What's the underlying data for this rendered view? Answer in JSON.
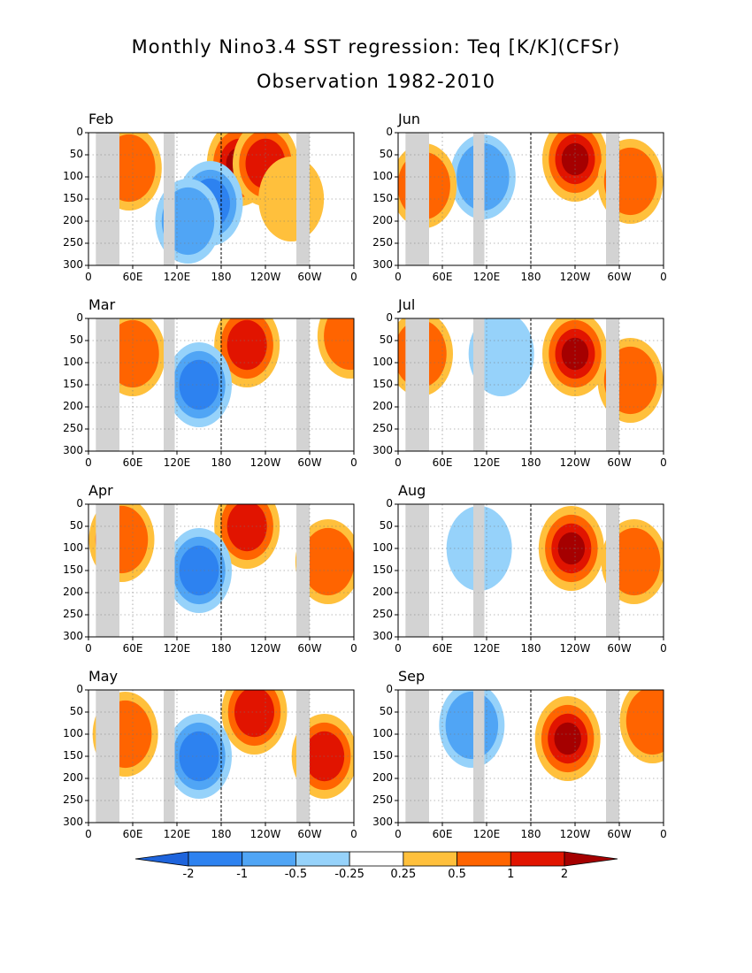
{
  "figure": {
    "title_line1": "Monthly Nino3.4 SST regression: Teq [K/K](CFSr)",
    "title_line2": "Observation 1982-2010"
  },
  "colors": {
    "levels": [
      "#1e64dc",
      "#2d82f0",
      "#50a5f5",
      "#96d2fa",
      "#ffffff",
      "#ffc03c",
      "#ff6400",
      "#e11400",
      "#a50000"
    ],
    "land_mask": "#d3d3d3"
  },
  "colorbar": {
    "labels": [
      "-2",
      "-1",
      "-0.5",
      "-0.25",
      "0.25",
      "0.5",
      "1",
      "2"
    ]
  },
  "chart_data": {
    "type": "heatmap",
    "x_ticks": [
      "0",
      "60E",
      "120E",
      "180",
      "120W",
      "60W",
      "0"
    ],
    "y_ticks": [
      "0",
      "50",
      "100",
      "150",
      "200",
      "250",
      "300"
    ],
    "xlim": [
      0,
      360
    ],
    "ylim": [
      300,
      0
    ],
    "contour_levels": [
      -2,
      -1,
      -0.5,
      -0.25,
      0.25,
      0.5,
      1,
      2
    ],
    "land_mask_lon": [
      [
        10,
        42
      ],
      [
        102,
        117
      ],
      [
        282,
        300
      ]
    ],
    "panels": [
      {
        "month": "Feb",
        "features": [
          {
            "lon": 205,
            "depth": 70,
            "value": 2.0
          },
          {
            "lon": 240,
            "depth": 70,
            "value": 1.5
          },
          {
            "lon": 165,
            "depth": 160,
            "value": -1.0
          },
          {
            "lon": 135,
            "depth": 200,
            "value": -0.5
          },
          {
            "lon": 55,
            "depth": 80,
            "value": 0.7
          },
          {
            "lon": 275,
            "depth": 150,
            "value": 0.4
          }
        ]
      },
      {
        "month": "Mar",
        "features": [
          {
            "lon": 215,
            "depth": 60,
            "value": 1.5
          },
          {
            "lon": 150,
            "depth": 150,
            "value": -1.5
          },
          {
            "lon": 60,
            "depth": 80,
            "value": 0.5
          },
          {
            "lon": 355,
            "depth": 40,
            "value": 0.6
          }
        ]
      },
      {
        "month": "Apr",
        "features": [
          {
            "lon": 215,
            "depth": 50,
            "value": 1.3
          },
          {
            "lon": 150,
            "depth": 150,
            "value": -1.2
          },
          {
            "lon": 45,
            "depth": 80,
            "value": 0.6
          },
          {
            "lon": 325,
            "depth": 130,
            "value": 0.8
          }
        ]
      },
      {
        "month": "May",
        "features": [
          {
            "lon": 225,
            "depth": 50,
            "value": 1.4
          },
          {
            "lon": 150,
            "depth": 150,
            "value": -1.0
          },
          {
            "lon": 50,
            "depth": 100,
            "value": 0.7
          },
          {
            "lon": 320,
            "depth": 150,
            "value": 1.0
          }
        ]
      },
      {
        "month": "Jun",
        "features": [
          {
            "lon": 240,
            "depth": 60,
            "value": 2.2
          },
          {
            "lon": 115,
            "depth": 100,
            "value": -0.8
          },
          {
            "lon": 35,
            "depth": 120,
            "value": 0.6
          },
          {
            "lon": 315,
            "depth": 110,
            "value": 0.6
          }
        ]
      },
      {
        "month": "Jul",
        "features": [
          {
            "lon": 240,
            "depth": 80,
            "value": 2.1
          },
          {
            "lon": 140,
            "depth": 80,
            "value": -0.4
          },
          {
            "lon": 30,
            "depth": 80,
            "value": 0.5
          },
          {
            "lon": 315,
            "depth": 140,
            "value": 0.6
          }
        ]
      },
      {
        "month": "Aug",
        "features": [
          {
            "lon": 235,
            "depth": 100,
            "value": 2.1
          },
          {
            "lon": 110,
            "depth": 100,
            "value": -0.4
          },
          {
            "lon": 320,
            "depth": 130,
            "value": 0.6
          }
        ]
      },
      {
        "month": "Sep",
        "features": [
          {
            "lon": 230,
            "depth": 110,
            "value": 2.1
          },
          {
            "lon": 100,
            "depth": 80,
            "value": -0.8
          },
          {
            "lon": 345,
            "depth": 70,
            "value": 0.8
          }
        ]
      }
    ]
  }
}
